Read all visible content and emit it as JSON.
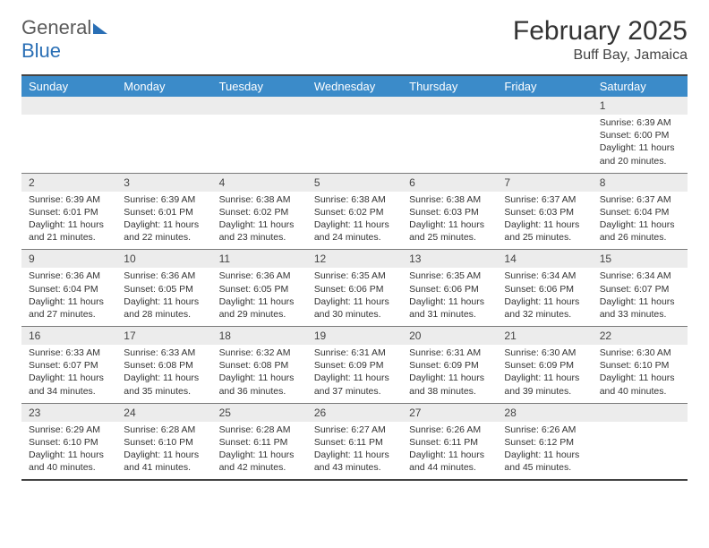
{
  "logo": {
    "text1": "General",
    "text2": "Blue"
  },
  "title": "February 2025",
  "location": "Buff Bay, Jamaica",
  "colors": {
    "header_bg": "#3b8bc9",
    "header_text": "#ffffff",
    "daynum_bg": "#ececec",
    "rule": "#444444",
    "logo_blue": "#2a6fb5",
    "logo_gray": "#5a5a5a"
  },
  "dayNames": [
    "Sunday",
    "Monday",
    "Tuesday",
    "Wednesday",
    "Thursday",
    "Friday",
    "Saturday"
  ],
  "weeks": [
    [
      null,
      null,
      null,
      null,
      null,
      null,
      {
        "n": "1",
        "sr": "6:39 AM",
        "ss": "6:00 PM",
        "dl": "11 hours and 20 minutes."
      }
    ],
    [
      {
        "n": "2",
        "sr": "6:39 AM",
        "ss": "6:01 PM",
        "dl": "11 hours and 21 minutes."
      },
      {
        "n": "3",
        "sr": "6:39 AM",
        "ss": "6:01 PM",
        "dl": "11 hours and 22 minutes."
      },
      {
        "n": "4",
        "sr": "6:38 AM",
        "ss": "6:02 PM",
        "dl": "11 hours and 23 minutes."
      },
      {
        "n": "5",
        "sr": "6:38 AM",
        "ss": "6:02 PM",
        "dl": "11 hours and 24 minutes."
      },
      {
        "n": "6",
        "sr": "6:38 AM",
        "ss": "6:03 PM",
        "dl": "11 hours and 25 minutes."
      },
      {
        "n": "7",
        "sr": "6:37 AM",
        "ss": "6:03 PM",
        "dl": "11 hours and 25 minutes."
      },
      {
        "n": "8",
        "sr": "6:37 AM",
        "ss": "6:04 PM",
        "dl": "11 hours and 26 minutes."
      }
    ],
    [
      {
        "n": "9",
        "sr": "6:36 AM",
        "ss": "6:04 PM",
        "dl": "11 hours and 27 minutes."
      },
      {
        "n": "10",
        "sr": "6:36 AM",
        "ss": "6:05 PM",
        "dl": "11 hours and 28 minutes."
      },
      {
        "n": "11",
        "sr": "6:36 AM",
        "ss": "6:05 PM",
        "dl": "11 hours and 29 minutes."
      },
      {
        "n": "12",
        "sr": "6:35 AM",
        "ss": "6:06 PM",
        "dl": "11 hours and 30 minutes."
      },
      {
        "n": "13",
        "sr": "6:35 AM",
        "ss": "6:06 PM",
        "dl": "11 hours and 31 minutes."
      },
      {
        "n": "14",
        "sr": "6:34 AM",
        "ss": "6:06 PM",
        "dl": "11 hours and 32 minutes."
      },
      {
        "n": "15",
        "sr": "6:34 AM",
        "ss": "6:07 PM",
        "dl": "11 hours and 33 minutes."
      }
    ],
    [
      {
        "n": "16",
        "sr": "6:33 AM",
        "ss": "6:07 PM",
        "dl": "11 hours and 34 minutes."
      },
      {
        "n": "17",
        "sr": "6:33 AM",
        "ss": "6:08 PM",
        "dl": "11 hours and 35 minutes."
      },
      {
        "n": "18",
        "sr": "6:32 AM",
        "ss": "6:08 PM",
        "dl": "11 hours and 36 minutes."
      },
      {
        "n": "19",
        "sr": "6:31 AM",
        "ss": "6:09 PM",
        "dl": "11 hours and 37 minutes."
      },
      {
        "n": "20",
        "sr": "6:31 AM",
        "ss": "6:09 PM",
        "dl": "11 hours and 38 minutes."
      },
      {
        "n": "21",
        "sr": "6:30 AM",
        "ss": "6:09 PM",
        "dl": "11 hours and 39 minutes."
      },
      {
        "n": "22",
        "sr": "6:30 AM",
        "ss": "6:10 PM",
        "dl": "11 hours and 40 minutes."
      }
    ],
    [
      {
        "n": "23",
        "sr": "6:29 AM",
        "ss": "6:10 PM",
        "dl": "11 hours and 40 minutes."
      },
      {
        "n": "24",
        "sr": "6:28 AM",
        "ss": "6:10 PM",
        "dl": "11 hours and 41 minutes."
      },
      {
        "n": "25",
        "sr": "6:28 AM",
        "ss": "6:11 PM",
        "dl": "11 hours and 42 minutes."
      },
      {
        "n": "26",
        "sr": "6:27 AM",
        "ss": "6:11 PM",
        "dl": "11 hours and 43 minutes."
      },
      {
        "n": "27",
        "sr": "6:26 AM",
        "ss": "6:11 PM",
        "dl": "11 hours and 44 minutes."
      },
      {
        "n": "28",
        "sr": "6:26 AM",
        "ss": "6:12 PM",
        "dl": "11 hours and 45 minutes."
      },
      null
    ]
  ],
  "labels": {
    "sunrise": "Sunrise:",
    "sunset": "Sunset:",
    "daylight": "Daylight:"
  }
}
